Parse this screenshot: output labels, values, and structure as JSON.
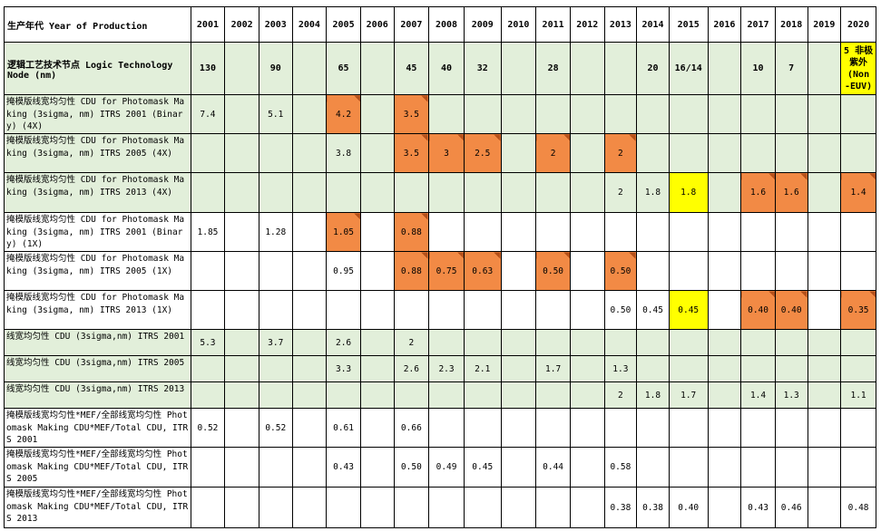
{
  "colors": {
    "green_row": "#e2efda",
    "orange_cell": "#f28a45",
    "yellow_cell": "#ffff00"
  },
  "header": {
    "label": "生产年代 Year of Production",
    "years": [
      "2001",
      "2002",
      "2003",
      "2004",
      "2005",
      "2006",
      "2007",
      "2008",
      "2009",
      "2010",
      "2011",
      "2012",
      "2013",
      "2014",
      "2015",
      "2016",
      "2017",
      "2018",
      "2019",
      "2020"
    ]
  },
  "node_row": {
    "label": "逻辑工艺技术节点 Logic Technology Node (nm)",
    "values": [
      "130",
      "",
      "90",
      "",
      "65",
      "",
      "45",
      "40",
      "32",
      "",
      "28",
      "",
      "",
      "20",
      "16/14",
      "",
      "10",
      "7",
      "",
      "5 非极紫外 (Non -EUV)"
    ]
  },
  "rows": [
    {
      "label": "掩模版线宽均匀性 CDU for Photomask Making (3sigma, nm) ITRS 2001 (Binary) (4X)",
      "values": [
        "7.4",
        "",
        "5.1",
        "",
        "4.2",
        "",
        "3.5",
        "",
        "",
        "",
        "",
        "",
        "",
        "",
        "",
        "",
        "",
        "",
        "",
        ""
      ],
      "highlight": [
        "",
        "",
        "",
        "",
        "orange",
        "",
        "orange",
        "",
        "",
        "",
        "",
        "",
        "",
        "",
        "",
        "",
        "",
        "",
        "",
        ""
      ]
    },
    {
      "label": "掩模版线宽均匀性 CDU for Photomask Making (3sigma, nm) ITRS 2005 (4X)",
      "values": [
        "",
        "",
        "",
        "",
        "3.8",
        "",
        "3.5",
        "3",
        "2.5",
        "",
        "2",
        "",
        "2",
        "",
        "",
        "",
        "",
        "",
        "",
        ""
      ],
      "highlight": [
        "",
        "",
        "",
        "",
        "",
        "",
        "orange",
        "orange",
        "orange",
        "",
        "orange",
        "",
        "orange",
        "",
        "",
        "",
        "",
        "",
        "",
        ""
      ]
    },
    {
      "label": "掩模版线宽均匀性 CDU for Photomask Making (3sigma, nm) ITRS 2013 (4X)",
      "values": [
        "",
        "",
        "",
        "",
        "",
        "",
        "",
        "",
        "",
        "",
        "",
        "",
        "2",
        "1.8",
        "1.8",
        "",
        "1.6",
        "1.6",
        "",
        "1.4"
      ],
      "highlight": [
        "",
        "",
        "",
        "",
        "",
        "",
        "",
        "",
        "",
        "",
        "",
        "",
        "",
        "",
        "yellow",
        "",
        "orange",
        "orange",
        "",
        "orange"
      ]
    },
    {
      "label": "掩模版线宽均匀性 CDU for Photomask Making (3sigma, nm) ITRS 2001 (Binary) (1X)",
      "values": [
        "1.85",
        "",
        "1.28",
        "",
        "1.05",
        "",
        "0.88",
        "",
        "",
        "",
        "",
        "",
        "",
        "",
        "",
        "",
        "",
        "",
        "",
        ""
      ],
      "highlight": [
        "",
        "",
        "",
        "",
        "orange",
        "",
        "orange",
        "",
        "",
        "",
        "",
        "",
        "",
        "",
        "",
        "",
        "",
        "",
        "",
        ""
      ]
    },
    {
      "label": "掩模版线宽均匀性 CDU for Photomask Making (3sigma, nm) ITRS 2005 (1X)",
      "values": [
        "",
        "",
        "",
        "",
        "0.95",
        "",
        "0.88",
        "0.75",
        "0.63",
        "",
        "0.50",
        "",
        "0.50",
        "",
        "",
        "",
        "",
        "",
        "",
        ""
      ],
      "highlight": [
        "",
        "",
        "",
        "",
        "",
        "",
        "orange",
        "orange",
        "orange",
        "",
        "orange",
        "",
        "orange",
        "",
        "",
        "",
        "",
        "",
        "",
        ""
      ]
    },
    {
      "label": "掩模版线宽均匀性 CDU for Photomask Making (3sigma, nm) ITRS 2013 (1X)",
      "values": [
        "",
        "",
        "",
        "",
        "",
        "",
        "",
        "",
        "",
        "",
        "",
        "",
        "0.50",
        "0.45",
        "0.45",
        "",
        "0.40",
        "0.40",
        "",
        "0.35"
      ],
      "highlight": [
        "",
        "",
        "",
        "",
        "",
        "",
        "",
        "",
        "",
        "",
        "",
        "",
        "",
        "",
        "yellow",
        "",
        "orange",
        "orange",
        "",
        "orange"
      ]
    },
    {
      "label": "线宽均匀性 CDU (3sigma,nm) ITRS 2001",
      "values": [
        "5.3",
        "",
        "3.7",
        "",
        "2.6",
        "",
        "2",
        "",
        "",
        "",
        "",
        "",
        "",
        "",
        "",
        "",
        "",
        "",
        "",
        ""
      ],
      "highlight": [
        "",
        "",
        "",
        "",
        "",
        "",
        "",
        "",
        "",
        "",
        "",
        "",
        "",
        "",
        "",
        "",
        "",
        "",
        "",
        ""
      ]
    },
    {
      "label": "线宽均匀性 CDU (3sigma,nm) ITRS 2005",
      "values": [
        "",
        "",
        "",
        "",
        "3.3",
        "",
        "2.6",
        "2.3",
        "2.1",
        "",
        "1.7",
        "",
        "1.3",
        "",
        "",
        "",
        "",
        "",
        "",
        ""
      ],
      "highlight": [
        "",
        "",
        "",
        "",
        "",
        "",
        "",
        "",
        "",
        "",
        "",
        "",
        "",
        "",
        "",
        "",
        "",
        "",
        "",
        ""
      ]
    },
    {
      "label": "线宽均匀性 CDU (3sigma,nm) ITRS 2013",
      "values": [
        "",
        "",
        "",
        "",
        "",
        "",
        "",
        "",
        "",
        "",
        "",
        "",
        "2",
        "1.8",
        "1.7",
        "",
        "1.4",
        "1.3",
        "",
        "1.1"
      ],
      "highlight": [
        "",
        "",
        "",
        "",
        "",
        "",
        "",
        "",
        "",
        "",
        "",
        "",
        "",
        "",
        "",
        "",
        "",
        "",
        "",
        ""
      ]
    },
    {
      "label": "掩模版线宽均匀性*MEF/全部线宽均匀性 Photomask Making CDU*MEF/Total CDU, ITRS 2001",
      "values": [
        "0.52",
        "",
        "0.52",
        "",
        "0.61",
        "",
        "0.66",
        "",
        "",
        "",
        "",
        "",
        "",
        "",
        "",
        "",
        "",
        "",
        "",
        ""
      ],
      "highlight": [
        "",
        "",
        "",
        "",
        "",
        "",
        "",
        "",
        "",
        "",
        "",
        "",
        "",
        "",
        "",
        "",
        "",
        "",
        "",
        ""
      ]
    },
    {
      "label": "掩模版线宽均匀性*MEF/全部线宽均匀性 Photomask Making CDU*MEF/Total CDU, ITRS 2005",
      "values": [
        "",
        "",
        "",
        "",
        "0.43",
        "",
        "0.50",
        "0.49",
        "0.45",
        "",
        "0.44",
        "",
        "0.58",
        "",
        "",
        "",
        "",
        "",
        "",
        ""
      ],
      "highlight": [
        "",
        "",
        "",
        "",
        "",
        "",
        "",
        "",
        "",
        "",
        "",
        "",
        "",
        "",
        "",
        "",
        "",
        "",
        "",
        ""
      ]
    },
    {
      "label": "掩模版线宽均匀性*MEF/全部线宽均匀性 Photomask Making CDU*MEF/Total CDU, ITRS 2013",
      "values": [
        "",
        "",
        "",
        "",
        "",
        "",
        "",
        "",
        "",
        "",
        "",
        "",
        "0.38",
        "0.38",
        "0.40",
        "",
        "0.43",
        "0.46",
        "",
        "0.48"
      ],
      "highlight": [
        "",
        "",
        "",
        "",
        "",
        "",
        "",
        "",
        "",
        "",
        "",
        "",
        "",
        "",
        "",
        "",
        "",
        "",
        "",
        ""
      ]
    }
  ]
}
